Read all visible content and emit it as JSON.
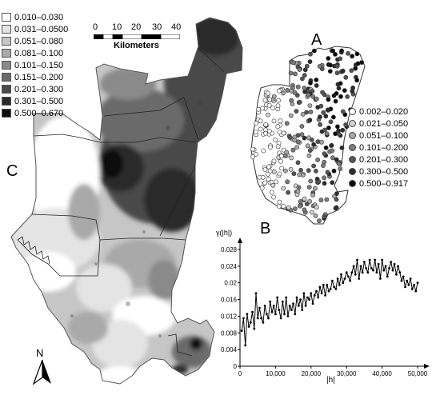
{
  "panels": {
    "a": "A",
    "b": "B",
    "c": "C"
  },
  "legend_c": [
    {
      "label": "0.010–0.030",
      "color": "#ffffff"
    },
    {
      "label": "0.031–0.0500",
      "color": "#e4e4e4"
    },
    {
      "label": "0.051–0.080",
      "color": "#c6c6c6"
    },
    {
      "label": "0.081–0.100",
      "color": "#a9a9a9"
    },
    {
      "label": "0.101–0.150",
      "color": "#8a8a8a"
    },
    {
      "label": "0.151–0.200",
      "color": "#6a6a6a"
    },
    {
      "label": "0.201–0.300",
      "color": "#4a4a4a"
    },
    {
      "label": "0.301–0.500",
      "color": "#2a2a2a"
    },
    {
      "label": "0.500–0.670",
      "color": "#0c0c0c"
    }
  ],
  "legend_a": [
    {
      "label": "0.002–0.020",
      "color": "#ffffff"
    },
    {
      "label": "0.021–0.050",
      "color": "#d2d2d2"
    },
    {
      "label": "0.051–0.100",
      "color": "#a8a8a8"
    },
    {
      "label": "0.101–0.200",
      "color": "#7c7c7c"
    },
    {
      "label": "0.201–0.300",
      "color": "#555555"
    },
    {
      "label": "0.300–0.500",
      "color": "#2c2c2c"
    },
    {
      "label": "0.500–0.917",
      "color": "#0a0a0a"
    }
  ],
  "scale_bar": {
    "ticks": [
      "0",
      "10",
      "20",
      "30",
      "40"
    ],
    "unit": "Kilometers"
  },
  "north_arrow": {
    "label": "N",
    "icon": "north-arrow-icon"
  },
  "chart_data": {
    "type": "line",
    "title": "",
    "ylabel": "γ(|h|)",
    "xlabel": "|h|",
    "xlim": [
      0,
      50000
    ],
    "ylim": [
      0,
      0.028
    ],
    "x_ticks": [
      "0",
      "10,000",
      "20,000",
      "30,000",
      "40,000",
      "50,000"
    ],
    "y_ticks": [
      "0",
      "0.004",
      "0.008",
      "0.012",
      "0.016",
      "0.02",
      "0.024",
      "0.028"
    ],
    "series": [
      {
        "x": [
          500,
          1000,
          1500,
          2000,
          2500,
          3000,
          3500,
          4000,
          4500,
          5000,
          5500,
          6000,
          6500,
          7000,
          7500,
          8000,
          8500,
          9000,
          9500,
          10000,
          10500,
          11000,
          11500,
          12000,
          12500,
          13000,
          13500,
          14000,
          14500,
          15000,
          15500,
          16000,
          16500,
          17000,
          17500,
          18000,
          18500,
          19000,
          19500,
          20000,
          20500,
          21000,
          21500,
          22000,
          22500,
          23000,
          23500,
          24000,
          24500,
          25000,
          25500,
          26000,
          26500,
          27000,
          27500,
          28000,
          28500,
          29000,
          29500,
          30000,
          30500,
          31000,
          31500,
          32000,
          32500,
          33000,
          33500,
          34000,
          34500,
          35000,
          35500,
          36000,
          36500,
          37000,
          37500,
          38000,
          38500,
          39000,
          39500,
          40000,
          40500,
          41000,
          41500,
          42000,
          42500,
          43000,
          43500,
          44000,
          44500,
          45000,
          45500,
          46000,
          46500,
          47000,
          47500,
          48000,
          48500,
          49000,
          49500,
          50000
        ],
        "y": [
          0.0085,
          0.0115,
          0.005,
          0.0125,
          0.0095,
          0.0105,
          0.013,
          0.009,
          0.0175,
          0.0115,
          0.014,
          0.0115,
          0.0105,
          0.0145,
          0.0125,
          0.0115,
          0.0155,
          0.013,
          0.0145,
          0.0125,
          0.0165,
          0.0135,
          0.0115,
          0.0155,
          0.0125,
          0.0165,
          0.012,
          0.0145,
          0.0135,
          0.015,
          0.0125,
          0.0165,
          0.0145,
          0.016,
          0.0135,
          0.0175,
          0.0145,
          0.0165,
          0.016,
          0.0175,
          0.015,
          0.017,
          0.018,
          0.0165,
          0.019,
          0.0175,
          0.0195,
          0.017,
          0.0195,
          0.018,
          0.0185,
          0.0205,
          0.019,
          0.0185,
          0.021,
          0.0195,
          0.022,
          0.02,
          0.021,
          0.0225,
          0.0215,
          0.0205,
          0.0225,
          0.024,
          0.022,
          0.0255,
          0.021,
          0.024,
          0.0225,
          0.025,
          0.0235,
          0.0225,
          0.0255,
          0.0235,
          0.023,
          0.0255,
          0.0225,
          0.0245,
          0.021,
          0.0255,
          0.023,
          0.024,
          0.0215,
          0.0235,
          0.025,
          0.023,
          0.0245,
          0.022,
          0.024,
          0.0225,
          0.0205,
          0.0215,
          0.019,
          0.0205,
          0.0195,
          0.021,
          0.0185,
          0.0195,
          0.018,
          0.02
        ]
      }
    ]
  }
}
